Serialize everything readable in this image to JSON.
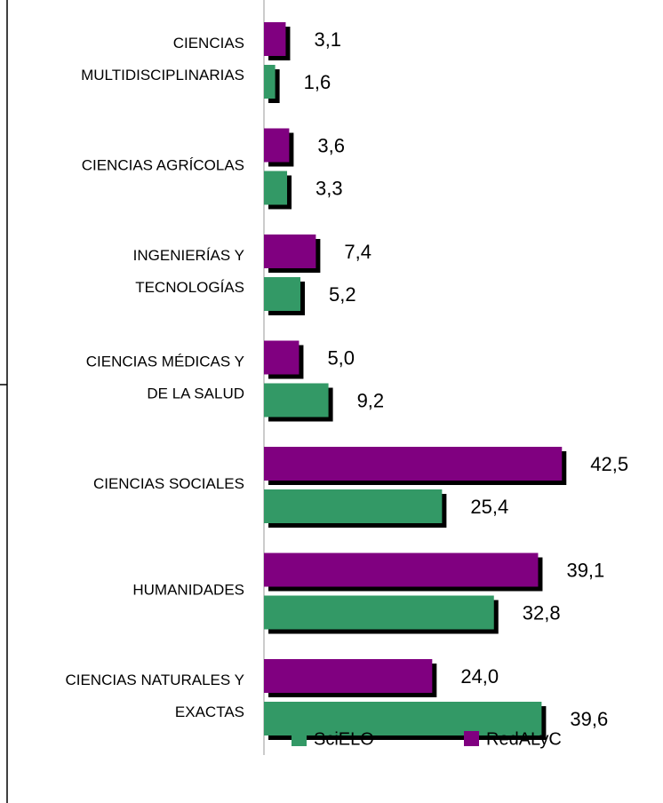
{
  "chart_data": {
    "type": "bar",
    "orientation": "horizontal",
    "categories": [
      "CIENCIAS\nMULTIDISCIPLINARIAS",
      "CIENCIAS AGRÍCOLAS",
      "INGENIERÍAS Y\nTECNOLOGÍAS",
      "CIENCIAS MÉDICAS Y\nDE LA SALUD",
      "CIENCIAS SOCIALES",
      "HUMANIDADES",
      "CIENCIAS NATURALES Y\nEXACTAS"
    ],
    "series": [
      {
        "name": "SciELO",
        "color": "#339966",
        "values": [
          1.6,
          3.3,
          5.2,
          9.2,
          25.4,
          32.8,
          39.6
        ],
        "value_labels": [
          "1,6",
          "3,3",
          "5,2",
          "9,2",
          "25,4",
          "32,8",
          "39,6"
        ]
      },
      {
        "name": "RedALyC",
        "color": "#800080",
        "values": [
          3.1,
          3.6,
          7.4,
          5.0,
          42.5,
          39.1,
          24.0
        ],
        "value_labels": [
          "3,1",
          "3,6",
          "7,4",
          "5,0",
          "42,5",
          "39,1",
          "24,0"
        ]
      }
    ],
    "xlim": [
      0,
      45
    ],
    "legend": "bottom"
  }
}
